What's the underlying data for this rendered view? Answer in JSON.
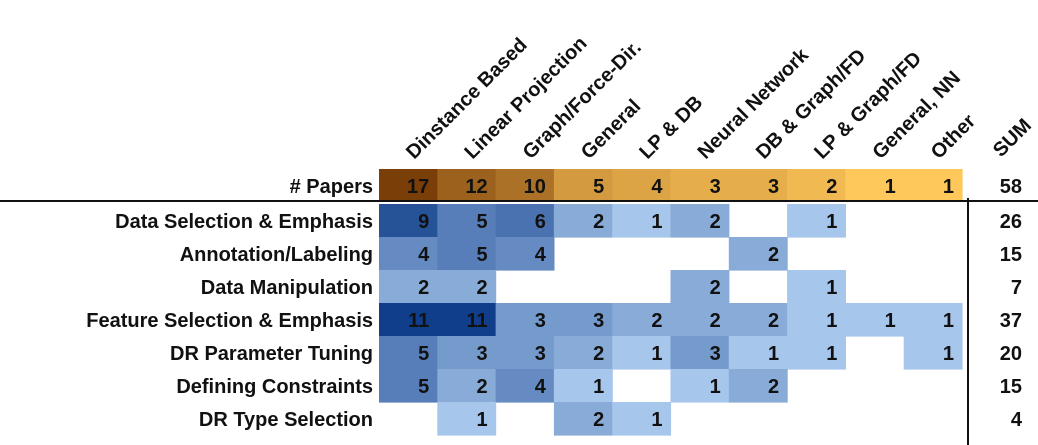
{
  "chart_data": {
    "type": "heatmap",
    "columns": [
      "Dinstance Based",
      "Linear Projection",
      "Graph/Force-Dir.",
      "General",
      "LP & DB",
      "Neural Network",
      "DB & Graph/FD",
      "LP & Graph/FD",
      "General, NN",
      "Other"
    ],
    "sum_label": "SUM",
    "papers_row": {
      "label": "# Papers",
      "values": [
        17,
        12,
        10,
        5,
        4,
        3,
        3,
        2,
        1,
        1
      ],
      "sum": 58
    },
    "rows": [
      {
        "label": "Data Selection & Emphasis",
        "values": [
          9,
          5,
          6,
          2,
          1,
          2,
          null,
          1,
          null,
          null
        ],
        "sum": 26
      },
      {
        "label": "Annotation/Labeling",
        "values": [
          4,
          5,
          4,
          null,
          null,
          null,
          2,
          null,
          null,
          null
        ],
        "sum": 15
      },
      {
        "label": "Data Manipulation",
        "values": [
          2,
          2,
          null,
          null,
          null,
          2,
          null,
          1,
          null,
          null
        ],
        "sum": 7
      },
      {
        "label": "Feature Selection & Emphasis",
        "values": [
          11,
          11,
          3,
          3,
          2,
          2,
          2,
          1,
          1,
          1
        ],
        "sum": 37
      },
      {
        "label": "DR Parameter Tuning",
        "values": [
          5,
          3,
          3,
          2,
          1,
          3,
          1,
          1,
          null,
          1
        ],
        "sum": 20
      },
      {
        "label": "Defining Constraints",
        "values": [
          5,
          2,
          4,
          1,
          null,
          1,
          2,
          null,
          null,
          null
        ],
        "sum": 15
      },
      {
        "label": "DR Type Selection",
        "values": [
          null,
          1,
          null,
          2,
          1,
          null,
          null,
          null,
          null,
          null
        ],
        "sum": 4
      }
    ],
    "colors": {
      "papers_scale": [
        "#ffc85a",
        "#7a3e08"
      ],
      "cells_scale": [
        "#a6c6ec",
        "#103e8a"
      ]
    }
  }
}
